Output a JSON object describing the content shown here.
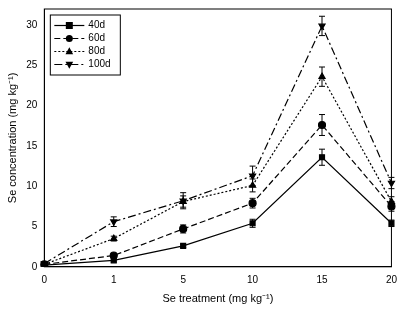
{
  "chart_data": {
    "type": "line",
    "x_label": "Se treatment (mg kg⁻¹)",
    "y_label": "Se concentration (mg kg⁻¹)",
    "categories": [
      0,
      1,
      5,
      10,
      15,
      20
    ],
    "ylim": [
      0,
      32
    ],
    "yticks": [
      0,
      5,
      10,
      15,
      20,
      25,
      30
    ],
    "grid": false,
    "legend": "upper left",
    "series": [
      {
        "name": "40d",
        "color": "#000000",
        "marker": "square",
        "line_style": "solid",
        "values": [
          0.2,
          0.8,
          2.6,
          5.4,
          13.6,
          5.4
        ],
        "errors": [
          0.1,
          0.2,
          0.2,
          0.5,
          1.0,
          0.4
        ]
      },
      {
        "name": "60d",
        "color": "#000000",
        "marker": "circle",
        "line_style": "dashed",
        "values": [
          0.3,
          1.4,
          4.7,
          7.9,
          17.6,
          7.5
        ],
        "errors": [
          0.1,
          0.2,
          0.5,
          0.6,
          1.3,
          0.6
        ]
      },
      {
        "name": "80d",
        "color": "#000000",
        "marker": "triangle",
        "line_style": "dotted",
        "values": [
          0.3,
          3.5,
          8.1,
          10.1,
          23.6,
          8.1
        ],
        "errors": [
          0.1,
          0.3,
          0.7,
          0.8,
          1.2,
          0.6
        ]
      },
      {
        "name": "100d",
        "color": "#000000",
        "marker": "triangle_down",
        "line_style": "dashdot",
        "values": [
          0.4,
          5.6,
          8.2,
          11.3,
          29.9,
          10.4
        ],
        "errors": [
          0.1,
          0.6,
          1.0,
          1.2,
          1.2,
          0.7
        ]
      }
    ]
  }
}
